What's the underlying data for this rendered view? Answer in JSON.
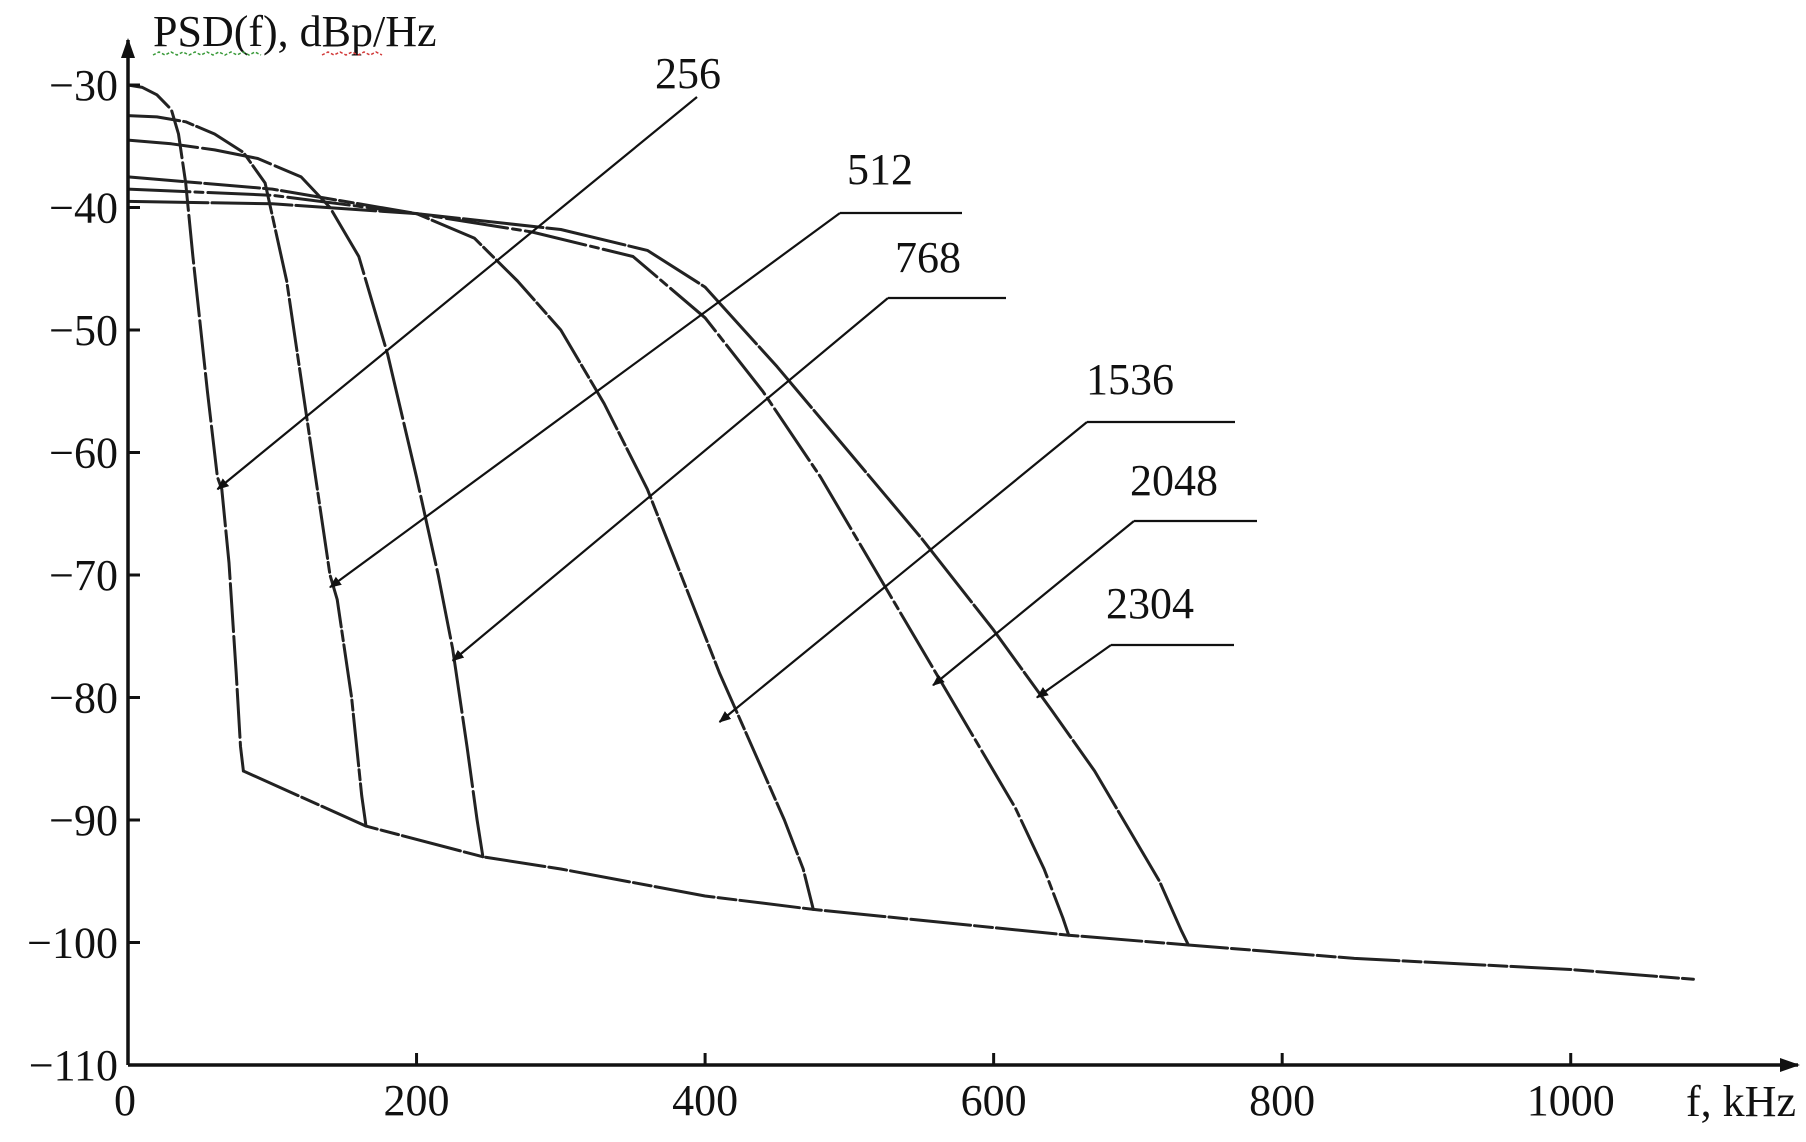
{
  "chart_data": {
    "type": "line",
    "title": "",
    "ylabel": "PSD(f), dBp/Hz",
    "xlabel": "f, kHz",
    "xlim": [
      0,
      1100
    ],
    "ylim": [
      -110,
      -30
    ],
    "grid": false,
    "legend": "none",
    "x_ticks": [
      0,
      200,
      400,
      600,
      800,
      1000
    ],
    "x_tick_labels": [
      "0",
      "200",
      "400",
      "600",
      "800",
      "1000"
    ],
    "y_ticks": [
      -30,
      -40,
      -50,
      -60,
      -70,
      -80,
      -90,
      -100,
      -110
    ],
    "y_tick_labels": [
      "−30",
      "−40",
      "−50",
      "−60",
      "−70",
      "−80",
      "−90",
      "−100",
      "−110"
    ],
    "floor": {
      "x": [
        80,
        165,
        246,
        300,
        400,
        475,
        652,
        735,
        850,
        1000,
        1085
      ],
      "y": [
        -86,
        -90.5,
        -93,
        -94,
        -96.2,
        -97.3,
        -99.4,
        -100.2,
        -101.3,
        -102.2,
        -103
      ]
    },
    "series": [
      {
        "name": "256",
        "x": [
          0,
          10,
          20,
          30,
          35,
          40,
          45,
          55,
          62,
          65,
          70,
          75,
          78,
          80
        ],
        "y": [
          -30,
          -30.2,
          -30.8,
          -32,
          -34,
          -38,
          -44,
          -55,
          -62,
          -63,
          -69,
          -78,
          -84,
          -86
        ]
      },
      {
        "name": "512",
        "x": [
          0,
          20,
          40,
          60,
          80,
          95,
          110,
          125,
          140,
          145,
          155,
          162,
          165
        ],
        "y": [
          -32.5,
          -32.6,
          -33,
          -34,
          -35.5,
          -38,
          -46,
          -58,
          -70,
          -72,
          -80,
          -88,
          -90.5
        ]
      },
      {
        "name": "768",
        "x": [
          0,
          30,
          60,
          90,
          120,
          140,
          160,
          180,
          200,
          215,
          225,
          235,
          242,
          246
        ],
        "y": [
          -34.5,
          -34.8,
          -35.3,
          -36,
          -37.5,
          -40,
          -44,
          -52,
          -62,
          -70,
          -76,
          -84,
          -90,
          -93
        ]
      },
      {
        "name": "1536",
        "x": [
          0,
          100,
          200,
          240,
          270,
          300,
          330,
          360,
          390,
          410,
          425,
          440,
          455,
          468,
          475
        ],
        "y": [
          -37.5,
          -38.5,
          -40.5,
          -42.5,
          -46,
          -50,
          -56,
          -63,
          -72,
          -78,
          -82,
          -86,
          -90,
          -94,
          -97.3
        ]
      },
      {
        "name": "2048",
        "x": [
          0,
          100,
          200,
          280,
          350,
          400,
          440,
          480,
          520,
          560,
          590,
          615,
          635,
          648,
          652
        ],
        "y": [
          -38.5,
          -39,
          -40.5,
          -42,
          -44,
          -49,
          -55,
          -62,
          -70,
          -78,
          -84,
          -89,
          -94,
          -98,
          -99.4
        ]
      },
      {
        "name": "2304",
        "x": [
          0,
          100,
          200,
          300,
          360,
          400,
          450,
          500,
          550,
          600,
          640,
          670,
          695,
          715,
          730,
          735
        ],
        "y": [
          -39.5,
          -39.7,
          -40.5,
          -41.8,
          -43.5,
          -46.5,
          -53,
          -60,
          -67,
          -74.5,
          -81,
          -86,
          -91,
          -95,
          -99,
          -100.2
        ]
      }
    ],
    "annotations": [
      {
        "text": "256",
        "points_to": [
          62,
          -63
        ]
      },
      {
        "text": "512",
        "points_to": [
          140,
          -71
        ]
      },
      {
        "text": "768",
        "points_to": [
          225,
          -77
        ]
      },
      {
        "text": "1536",
        "points_to": [
          410,
          -82
        ]
      },
      {
        "text": "2048",
        "points_to": [
          558,
          -79
        ]
      },
      {
        "text": "2304",
        "points_to": [
          630,
          -80
        ]
      }
    ]
  }
}
